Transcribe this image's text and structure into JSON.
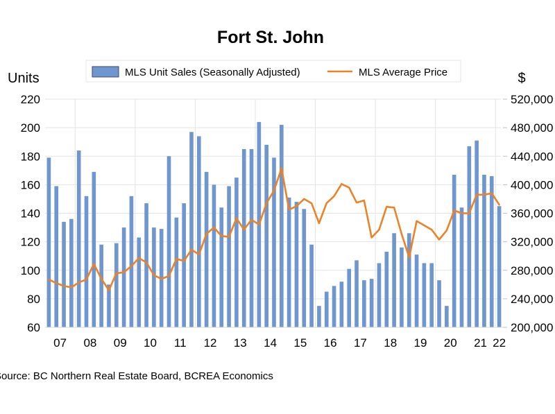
{
  "chart_data": {
    "type": "bar",
    "title": "Fort St. John",
    "source": "Source:  BC Northern Real Estate Board, BCREA Economics",
    "legend_position": "top",
    "grid": true,
    "xlabel": "",
    "frequency": "quarterly",
    "x_tick_labels": [
      "07",
      "08",
      "09",
      "10",
      "11",
      "12",
      "13",
      "14",
      "15",
      "16",
      "17",
      "18",
      "19",
      "20",
      "21",
      "22"
    ],
    "left_axis": {
      "label": "Units",
      "ylim": [
        60,
        220
      ],
      "ticks": [
        60,
        80,
        100,
        120,
        140,
        160,
        180,
        200,
        220
      ],
      "tick_labels": [
        "60",
        "80",
        "100",
        "120",
        "140",
        "160",
        "180",
        "200",
        "220"
      ]
    },
    "right_axis": {
      "label": "$",
      "ylim": [
        200000,
        520000
      ],
      "ticks": [
        200000,
        240000,
        280000,
        320000,
        360000,
        400000,
        440000,
        480000,
        520000
      ],
      "tick_labels": [
        "200,000",
        "240,000",
        "280,000",
        "320,000",
        "360,000",
        "400,000",
        "440,000",
        "480,000",
        "520,000"
      ]
    },
    "categories": [
      "2007Q1",
      "2007Q2",
      "2007Q3",
      "2007Q4",
      "2008Q1",
      "2008Q2",
      "2008Q3",
      "2008Q4",
      "2009Q1",
      "2009Q2",
      "2009Q3",
      "2009Q4",
      "2010Q1",
      "2010Q2",
      "2010Q3",
      "2010Q4",
      "2011Q1",
      "2011Q2",
      "2011Q3",
      "2011Q4",
      "2012Q1",
      "2012Q2",
      "2012Q3",
      "2012Q4",
      "2013Q1",
      "2013Q2",
      "2013Q3",
      "2013Q4",
      "2014Q1",
      "2014Q2",
      "2014Q3",
      "2014Q4",
      "2015Q1",
      "2015Q2",
      "2015Q3",
      "2015Q4",
      "2016Q1",
      "2016Q2",
      "2016Q3",
      "2016Q4",
      "2017Q1",
      "2017Q2",
      "2017Q3",
      "2017Q4",
      "2018Q1",
      "2018Q2",
      "2018Q3",
      "2018Q4",
      "2019Q1",
      "2019Q2",
      "2019Q3",
      "2019Q4",
      "2020Q1",
      "2020Q2",
      "2020Q3",
      "2020Q4",
      "2021Q1",
      "2021Q2",
      "2021Q3",
      "2021Q4",
      "2022Q1"
    ],
    "series": [
      {
        "name": "MLS Unit Sales (Seasonally Adjusted)",
        "type": "bar",
        "axis": "left",
        "color": "#7096CF",
        "values": [
          179,
          159,
          134,
          136,
          184,
          152,
          169,
          118,
          90,
          119,
          130,
          152,
          123,
          147,
          130,
          129,
          180,
          137,
          147,
          197,
          194,
          169,
          160,
          144,
          159,
          165,
          185,
          185,
          204,
          188,
          179,
          202,
          151,
          148,
          143,
          118,
          75,
          85,
          89,
          92,
          101,
          107,
          93,
          94,
          105,
          113,
          126,
          116,
          126,
          111,
          105,
          105,
          93,
          75,
          167,
          144,
          187,
          191,
          167,
          166,
          145
        ]
      },
      {
        "name": "MLS Average Price",
        "type": "line",
        "axis": "right",
        "color": "#EB8326",
        "values": [
          267000,
          262000,
          258000,
          256000,
          263000,
          267000,
          289000,
          268000,
          252000,
          276000,
          277000,
          286000,
          297000,
          291000,
          273000,
          268000,
          272000,
          296000,
          293000,
          309000,
          302000,
          331000,
          340000,
          328000,
          327000,
          353000,
          337000,
          351000,
          344000,
          374000,
          392000,
          423000,
          365000,
          370000,
          380000,
          374000,
          346000,
          374000,
          384000,
          401000,
          396000,
          375000,
          378000,
          326000,
          337000,
          369000,
          368000,
          331000,
          298000,
          349000,
          343000,
          337000,
          323000,
          336000,
          364000,
          360000,
          360000,
          386000,
          386000,
          388000,
          372000
        ]
      }
    ]
  }
}
